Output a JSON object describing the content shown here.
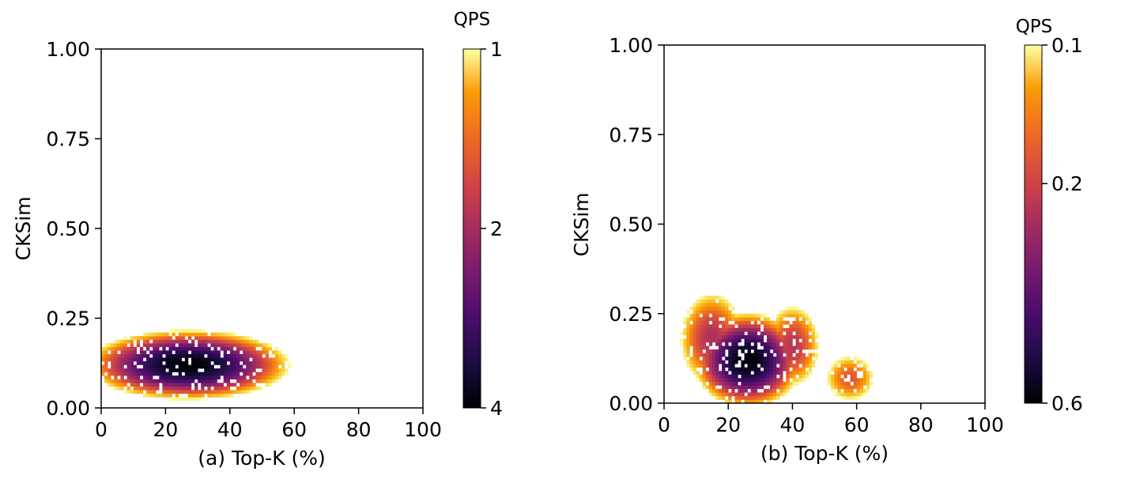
{
  "chart_data": [
    {
      "type": "heatmap",
      "panel": "a",
      "xlabel": "(a) Top-K (%)",
      "ylabel": "CKSim",
      "xlim": [
        0,
        100
      ],
      "ylim": [
        0,
        1
      ],
      "xticks": [
        "0",
        "20",
        "40",
        "60",
        "80",
        "100"
      ],
      "yticks": [
        "0.00",
        "0.25",
        "0.50",
        "0.75",
        "1.00"
      ],
      "colormap": "inferno_r",
      "colorbar": {
        "title": "QPS",
        "ticks": [
          "1",
          "2",
          "4"
        ],
        "min": 1,
        "max": 4,
        "scale": "log"
      },
      "density_peak": {
        "x": 26,
        "y": 0.12,
        "qps": 4
      },
      "blobs": [
        {
          "x": 27,
          "y": 0.12,
          "sx": 19,
          "sy": 0.058,
          "peak": 4.0
        }
      ],
      "support": {
        "x": [
          0,
          60
        ],
        "y": [
          0.0,
          0.23
        ]
      }
    },
    {
      "type": "heatmap",
      "panel": "b",
      "xlabel": "(b) Top-K (%)",
      "ylabel": "CKSim",
      "xlim": [
        0,
        100
      ],
      "ylim": [
        0,
        1
      ],
      "xticks": [
        "0",
        "20",
        "40",
        "60",
        "80",
        "100"
      ],
      "yticks": [
        "0.00",
        "0.25",
        "0.50",
        "0.75",
        "1.00"
      ],
      "colormap": "inferno_r",
      "colorbar": {
        "title": "QPS",
        "ticks": [
          "0.1",
          "0.2",
          "0.6"
        ],
        "min": 0.1,
        "max": 0.6,
        "scale": "log"
      },
      "density_peak": {
        "x": 26,
        "y": 0.12,
        "qps": 0.6
      },
      "blobs": [
        {
          "x": 26,
          "y": 0.12,
          "sx": 9,
          "sy": 0.07,
          "peak": 0.6
        },
        {
          "x": 15,
          "y": 0.18,
          "sx": 7,
          "sy": 0.09,
          "peak": 0.26
        },
        {
          "x": 40,
          "y": 0.16,
          "sx": 6,
          "sy": 0.08,
          "peak": 0.25
        },
        {
          "x": 58,
          "y": 0.07,
          "sx": 6,
          "sy": 0.05,
          "peak": 0.2
        }
      ],
      "support": {
        "x": [
          0,
          67
        ],
        "y": [
          0.0,
          0.32
        ]
      }
    }
  ]
}
